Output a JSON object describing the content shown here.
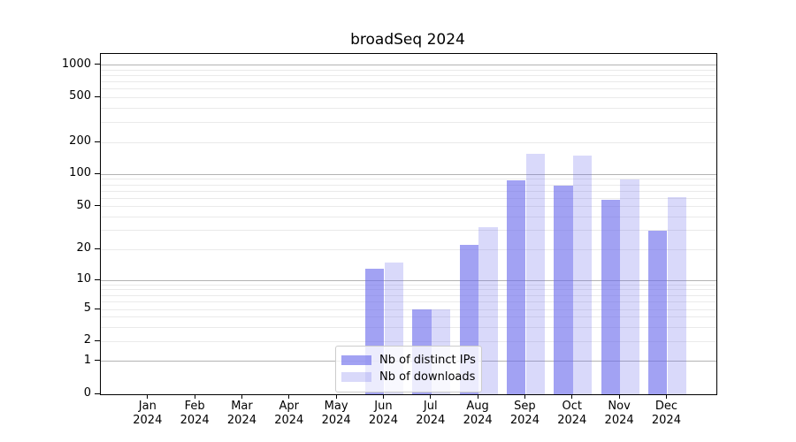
{
  "chart_data": {
    "type": "bar",
    "title": "broadSeq 2024",
    "categories": [
      "Jan 2024",
      "Feb 2024",
      "Mar 2024",
      "Apr 2024",
      "May 2024",
      "Jun 2024",
      "Jul 2024",
      "Aug 2024",
      "Sep 2024",
      "Oct 2024",
      "Nov 2024",
      "Dec 2024"
    ],
    "series": [
      {
        "name": "Nb of distinct IPs",
        "color": "rgba(105,105,235,0.62)",
        "values": [
          0,
          0,
          0,
          0,
          0,
          13,
          5,
          22,
          88,
          78,
          58,
          30
        ]
      },
      {
        "name": "Nb of downloads",
        "color": "rgba(105,105,235,0.25)",
        "values": [
          0,
          0,
          0,
          0,
          0,
          15,
          5,
          32,
          155,
          150,
          90,
          61
        ]
      }
    ],
    "yscale": "symlog",
    "y_ticks": [
      0,
      1,
      2,
      5,
      10,
      20,
      50,
      100,
      200,
      500,
      1000
    ],
    "ylim": [
      0,
      1280
    ],
    "grid": true,
    "legend_position": "lower center"
  },
  "colors": {
    "major_grid": "#b3b3b3",
    "minor_grid": "#eaeaea",
    "axis": "#000000",
    "background": "#ffffff"
  }
}
